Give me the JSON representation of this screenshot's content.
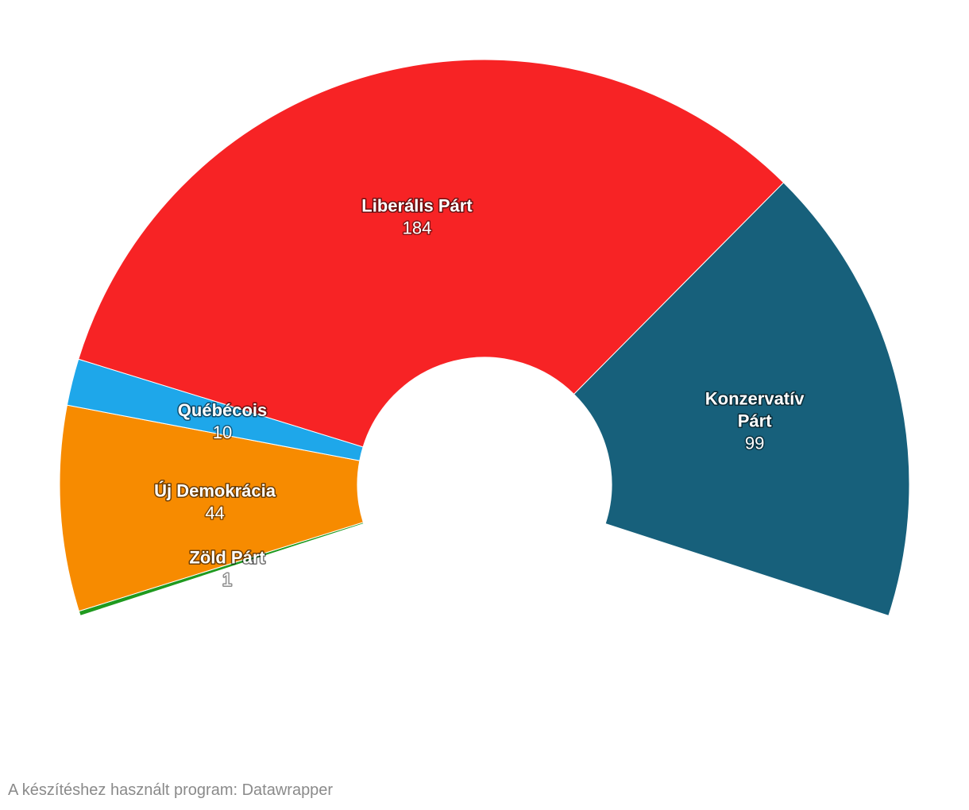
{
  "chart_data": {
    "type": "pie",
    "variant": "semicircle-donut",
    "title": "",
    "slices": [
      {
        "name": "Zöld Párt",
        "value": 1,
        "color": "#1f9a1f"
      },
      {
        "name": "Új Demokrácia",
        "value": 44,
        "color": "#f78b00"
      },
      {
        "name": "Québécois",
        "value": 10,
        "color": "#1ea7ea"
      },
      {
        "name": "Liberális Párt",
        "value": 184,
        "color": "#f72325"
      },
      {
        "name": "Konzervatív Párt",
        "value": 99,
        "color": "#17607b",
        "label_lines": [
          "Konzervatív",
          "Párt"
        ]
      }
    ]
  },
  "footer": {
    "credit": "A készítéshez használt program: Datawrapper"
  }
}
